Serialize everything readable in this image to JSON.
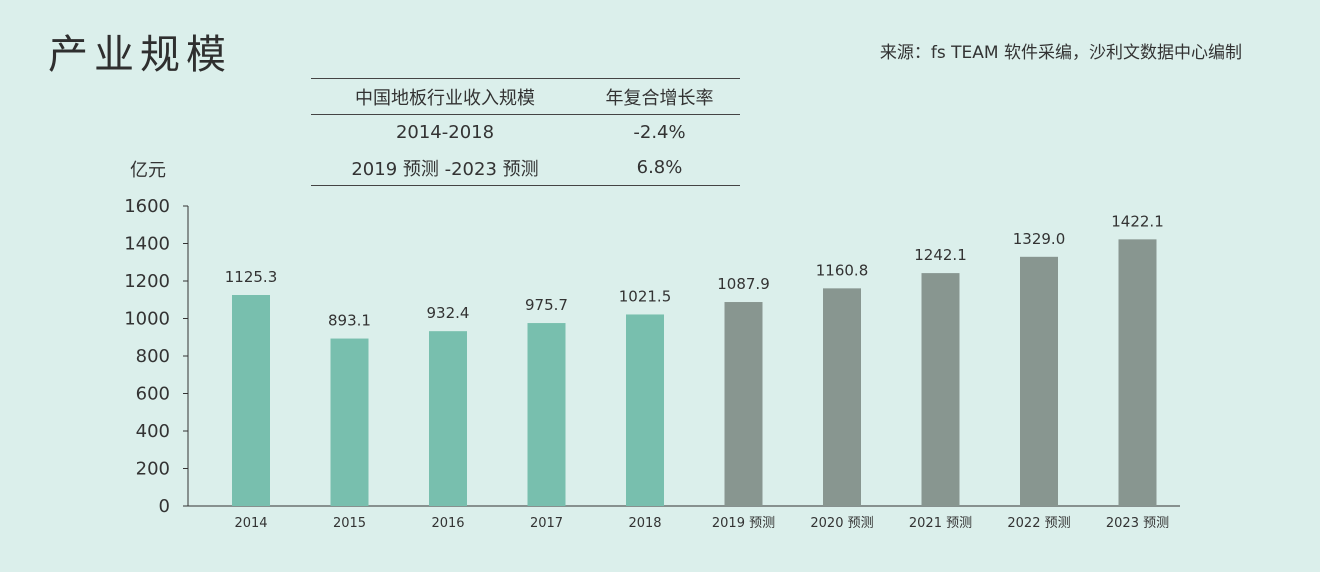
{
  "header": {
    "title": "产业规模",
    "source": "来源：fs TEAM 软件采编，沙利文数据中心编制"
  },
  "growth_table": {
    "headers": [
      "中国地板行业收入规模",
      "年复合增长率"
    ],
    "rows": [
      [
        "2014-2018",
        "-2.4%"
      ],
      [
        "2019 预测 -2023 预测",
        "6.8%"
      ]
    ]
  },
  "chart_data": {
    "type": "bar",
    "ylabel": "亿元",
    "ylim": [
      0,
      1600
    ],
    "yticks": [
      0,
      200,
      400,
      600,
      800,
      1000,
      1200,
      1400,
      1600
    ],
    "categories": [
      "2014",
      "2015",
      "2016",
      "2017",
      "2018",
      "2019 预测",
      "2020 预测",
      "2021 预测",
      "2022 预测",
      "2023 预测"
    ],
    "values": [
      1125.3,
      893.1,
      932.4,
      975.7,
      1021.5,
      1087.9,
      1160.8,
      1242.1,
      1329.0,
      1422.1
    ],
    "value_labels": [
      "1125.3",
      "893.1",
      "932.4",
      "975.7",
      "1021.5",
      "1087.9",
      "1160.8",
      "1242.1",
      "1329.0",
      "1422.1"
    ],
    "colors": [
      "#78bfae",
      "#78bfae",
      "#78bfae",
      "#78bfae",
      "#78bfae",
      "#889690",
      "#889690",
      "#889690",
      "#889690",
      "#889690"
    ],
    "axis_color": "#333333",
    "grid": false,
    "legend": "none"
  }
}
